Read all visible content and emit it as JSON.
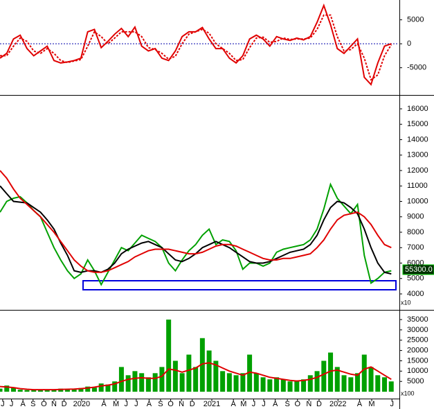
{
  "chart_data": [
    {
      "type": "line",
      "xlim": [
        0,
        59
      ],
      "ylim": [
        -10400,
        8850
      ],
      "yticks": [
        5000,
        0,
        -5000
      ],
      "zero_line": true,
      "series": [
        {
          "color": "#e00000",
          "style": "solid",
          "values": [
            -3000,
            -2000,
            1000,
            1800,
            -1000,
            -2500,
            -1500,
            -500,
            -3500,
            -4000,
            -3800,
            -3500,
            -3000,
            2500,
            3000,
            -800,
            500,
            2000,
            3200,
            1500,
            3500,
            -500,
            -1500,
            -1000,
            -3000,
            -3500,
            -1500,
            1500,
            2500,
            2500,
            3400,
            1000,
            -1000,
            -1000,
            -3000,
            -4000,
            -2500,
            1000,
            1800,
            1000,
            -500,
            1500,
            1000,
            700,
            1200,
            800,
            1500,
            4500,
            8000,
            4000,
            -1000,
            -2000,
            -500,
            1000,
            -7000,
            -8500,
            -4000,
            -500,
            0
          ]
        },
        {
          "color": "#e00000",
          "style": "dashed",
          "values": [
            -2500,
            -2500,
            -500,
            1200,
            500,
            -1500,
            -2000,
            -1000,
            -2000,
            -3500,
            -3900,
            -3600,
            -3300,
            -500,
            2500,
            1500,
            0,
            1200,
            2500,
            2500,
            2500,
            1500,
            -800,
            -1200,
            -2000,
            -3200,
            -2600,
            0,
            2000,
            2500,
            3000,
            2200,
            0,
            -1000,
            -2000,
            -3500,
            -3300,
            -800,
            1200,
            1400,
            300,
            500,
            1200,
            900,
            1000,
            1000,
            1200,
            3000,
            6000,
            6000,
            1500,
            -1500,
            -1200,
            0,
            -3000,
            -7500,
            -6500,
            -2500,
            -200
          ]
        }
      ]
    },
    {
      "type": "line",
      "xlim": [
        0,
        59
      ],
      "ylim": [
        3056,
        16764
      ],
      "yticks": [
        4000,
        5000,
        6000,
        7000,
        8000,
        9000,
        10000,
        11000,
        12000,
        13000,
        14000,
        15000,
        16000
      ],
      "unit_label": "x10",
      "last_price_label": "55300.0",
      "series": [
        {
          "color": "#00a000",
          "style": "solid",
          "values": [
            9300,
            10000,
            10200,
            10300,
            9900,
            9400,
            9000,
            8000,
            7000,
            6200,
            5500,
            5000,
            5300,
            6200,
            5500,
            4600,
            5400,
            6200,
            7000,
            6800,
            7300,
            7800,
            7600,
            7400,
            7000,
            6000,
            5500,
            6200,
            6800,
            7200,
            7800,
            8200,
            7200,
            7500,
            7400,
            6800,
            5600,
            6000,
            6000,
            5800,
            6000,
            6700,
            6900,
            7000,
            7100,
            7200,
            7500,
            8200,
            9500,
            11100,
            10200,
            9700,
            9200,
            9800,
            6500,
            4700,
            5000,
            5400,
            5500
          ]
        },
        {
          "color": "#000000",
          "style": "solid",
          "values": [
            11000,
            10500,
            10000,
            9950,
            9900,
            9600,
            9300,
            8800,
            8200,
            7300,
            6500,
            5500,
            5400,
            5500,
            5500,
            5400,
            5600,
            6000,
            6600,
            6900,
            7100,
            7300,
            7400,
            7200,
            7000,
            6600,
            6200,
            6100,
            6300,
            6600,
            7000,
            7200,
            7400,
            7200,
            7000,
            6700,
            6400,
            6100,
            6000,
            6000,
            6100,
            6300,
            6500,
            6700,
            6800,
            6900,
            7200,
            7800,
            8800,
            9600,
            10000,
            9900,
            9600,
            9200,
            8200,
            7000,
            6000,
            5400,
            5300
          ]
        },
        {
          "color": "#e00000",
          "style": "solid",
          "values": [
            12000,
            11500,
            10800,
            10200,
            9800,
            9400,
            9000,
            8500,
            8000,
            7400,
            6800,
            6200,
            5800,
            5500,
            5400,
            5400,
            5500,
            5700,
            5900,
            6100,
            6400,
            6600,
            6800,
            6900,
            6900,
            6900,
            6800,
            6700,
            6600,
            6600,
            6700,
            6900,
            7100,
            7200,
            7200,
            7100,
            6900,
            6700,
            6500,
            6300,
            6200,
            6200,
            6300,
            6300,
            6400,
            6500,
            6600,
            7000,
            7500,
            8200,
            8800,
            9100,
            9200,
            9300,
            9000,
            8500,
            7800,
            7200,
            7000
          ]
        }
      ]
    },
    {
      "type": "bar",
      "xlim": [
        0,
        59
      ],
      "ylim": [
        -3000,
        38700
      ],
      "yticks": [
        5000,
        10000,
        15000,
        20000,
        25000,
        30000,
        35000
      ],
      "unit_label": "x100",
      "xticks": [
        {
          "value": 0.4,
          "label": "J"
        },
        {
          "value": 1.7,
          "label": "J"
        },
        {
          "value": 3.4,
          "label": "A"
        },
        {
          "value": 4.9,
          "label": "S"
        },
        {
          "value": 6.5,
          "label": "O"
        },
        {
          "value": 8.0,
          "label": "N"
        },
        {
          "value": 9.5,
          "label": "D"
        },
        {
          "value": 12.1,
          "label": "2020"
        },
        {
          "value": 15.4,
          "label": "A"
        },
        {
          "value": 17.2,
          "label": "M"
        },
        {
          "value": 18.7,
          "label": "J"
        },
        {
          "value": 20.2,
          "label": "J"
        },
        {
          "value": 22.1,
          "label": "A"
        },
        {
          "value": 23.8,
          "label": "S"
        },
        {
          "value": 25.3,
          "label": "O"
        },
        {
          "value": 26.9,
          "label": "N"
        },
        {
          "value": 28.5,
          "label": "D"
        },
        {
          "value": 31.4,
          "label": "2021"
        },
        {
          "value": 34.6,
          "label": "A"
        },
        {
          "value": 36.1,
          "label": "M"
        },
        {
          "value": 37.6,
          "label": "J"
        },
        {
          "value": 39.1,
          "label": "J"
        },
        {
          "value": 40.8,
          "label": "A"
        },
        {
          "value": 42.6,
          "label": "S"
        },
        {
          "value": 44.1,
          "label": "O"
        },
        {
          "value": 45.8,
          "label": "N"
        },
        {
          "value": 47.3,
          "label": "D"
        },
        {
          "value": 50.1,
          "label": "2022"
        },
        {
          "value": 53.3,
          "label": "A"
        },
        {
          "value": 55.1,
          "label": "M"
        },
        {
          "value": 58.1,
          "label": "J"
        }
      ],
      "series": [
        {
          "color": "#00a000",
          "values": [
            1500,
            3000,
            2000,
            1000,
            800,
            1200,
            1000,
            900,
            1000,
            1500,
            1200,
            1000,
            1800,
            2500,
            2000,
            4000,
            3500,
            5000,
            12000,
            8000,
            10000,
            9000,
            7000,
            9000,
            12000,
            35000,
            15000,
            9000,
            18000,
            12000,
            26000,
            20000,
            15000,
            10000,
            9000,
            8000,
            9000,
            18000,
            9000,
            7000,
            6000,
            7000,
            6000,
            5000,
            5500,
            6000,
            8000,
            10000,
            15000,
            19000,
            12000,
            8000,
            7000,
            9000,
            18000,
            12000,
            8000,
            7000,
            5000
          ]
        },
        {
          "color": "#e00000",
          "values": [
            2500,
            2300,
            2000,
            1500,
            1200,
            1000,
            1000,
            1000,
            1000,
            1100,
            1200,
            1300,
            1500,
            1800,
            2200,
            2800,
            3200,
            3800,
            5000,
            6000,
            6500,
            6800,
            6500,
            6500,
            7500,
            11000,
            10500,
            9500,
            10500,
            11500,
            13500,
            14000,
            13000,
            11500,
            10000,
            9000,
            8000,
            9500,
            9000,
            8000,
            7000,
            6500,
            6000,
            5500,
            5200,
            5500,
            6000,
            7000,
            8500,
            10000,
            10500,
            9500,
            8500,
            8000,
            11000,
            12000,
            10000,
            8000,
            6000
          ]
        }
      ]
    }
  ]
}
